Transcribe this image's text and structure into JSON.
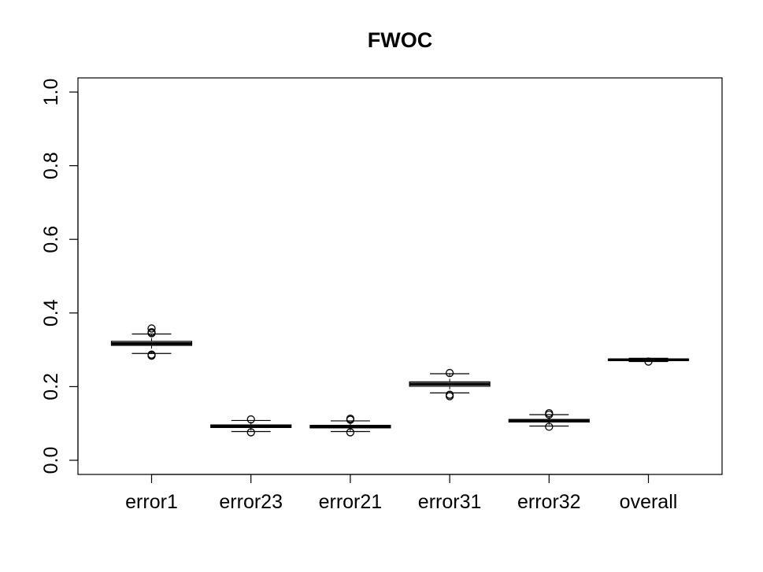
{
  "chart_data": {
    "type": "boxplot",
    "title": "FWOC",
    "xlabel": "",
    "ylabel": "",
    "ylim": [
      0,
      1
    ],
    "y_ticks": [
      "0.0",
      "0.2",
      "0.4",
      "0.6",
      "0.8",
      "1.0"
    ],
    "grid": false,
    "legend": "none",
    "categories": [
      "error1",
      "error23",
      "error21",
      "error31",
      "error32",
      "overall"
    ],
    "boxes": [
      {
        "label": "error1",
        "whisker_low": 0.29,
        "q1": 0.312,
        "median": 0.317,
        "q3": 0.323,
        "whisker_high": 0.343,
        "outliers": [
          0.358,
          0.348,
          0.345,
          0.287,
          0.284
        ]
      },
      {
        "label": "error23",
        "whisker_low": 0.078,
        "q1": 0.089,
        "median": 0.092,
        "q3": 0.096,
        "whisker_high": 0.108,
        "outliers": [
          0.111,
          0.076
        ]
      },
      {
        "label": "error21",
        "whisker_low": 0.078,
        "q1": 0.088,
        "median": 0.091,
        "q3": 0.095,
        "whisker_high": 0.107,
        "outliers": [
          0.113,
          0.11,
          0.076
        ]
      },
      {
        "label": "error31",
        "whisker_low": 0.183,
        "q1": 0.201,
        "median": 0.207,
        "q3": 0.213,
        "whisker_high": 0.235,
        "outliers": [
          0.237,
          0.178,
          0.174
        ]
      },
      {
        "label": "error32",
        "whisker_low": 0.093,
        "q1": 0.104,
        "median": 0.107,
        "q3": 0.111,
        "whisker_high": 0.124,
        "outliers": [
          0.128,
          0.124,
          0.091
        ]
      },
      {
        "label": "overall",
        "whisker_low": 0.268,
        "q1": 0.271,
        "median": 0.273,
        "q3": 0.275,
        "whisker_high": 0.277,
        "outliers": [
          0.268
        ]
      }
    ]
  }
}
